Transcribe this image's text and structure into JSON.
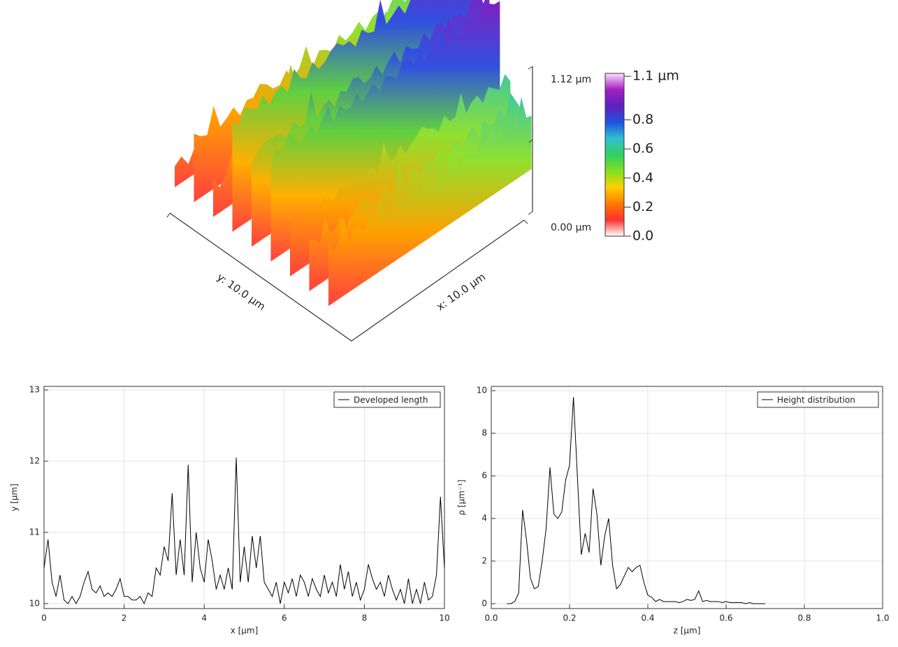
{
  "chart_data": [
    {
      "type": "surface3d",
      "xlabel": "x: 10.0 µm",
      "ylabel": "y: 10.0 µm",
      "z_axis_labels": [
        "1.12 µm",
        "0.00 µm"
      ],
      "clim": [
        0,
        1.12
      ],
      "colormap": [
        "#ffffff",
        "#ff3030",
        "#ff7a00",
        "#ffd000",
        "#80e020",
        "#30d060",
        "#30c0d0",
        "#2050e0",
        "#6020c0",
        "#a020c0",
        "#ffe0ff"
      ],
      "cticks": [
        {
          "value": 0,
          "label": "0.0"
        },
        0.2,
        0.4,
        0.6,
        0.8,
        {
          "value": 1.1,
          "label": "1.1 µm"
        }
      ]
    },
    {
      "type": "line",
      "xlabel": "x [µm]",
      "ylabel": "y [µm]",
      "xlim": [
        0,
        10
      ],
      "ylim": [
        9.93,
        13.05
      ],
      "xticks": [
        0,
        2,
        4,
        6,
        8,
        10
      ],
      "yticks": [
        10,
        11,
        12,
        13
      ],
      "grid": true,
      "legend": "top-right",
      "series": [
        {
          "name": "Developed length",
          "color": "#000000",
          "x": [
            0,
            0.1,
            0.2,
            0.3,
            0.4,
            0.5,
            0.6,
            0.7,
            0.8,
            0.9,
            1,
            1.1,
            1.2,
            1.3,
            1.4,
            1.5,
            1.6,
            1.7,
            1.8,
            1.9,
            2,
            2.1,
            2.2,
            2.3,
            2.4,
            2.5,
            2.6,
            2.7,
            2.8,
            2.9,
            3,
            3.1,
            3.2,
            3.3,
            3.4,
            3.5,
            3.6,
            3.7,
            3.8,
            3.9,
            4,
            4.1,
            4.2,
            4.3,
            4.4,
            4.5,
            4.6,
            4.7,
            4.8,
            4.9,
            5,
            5.1,
            5.2,
            5.3,
            5.4,
            5.5,
            5.6,
            5.7,
            5.8,
            5.9,
            6,
            6.1,
            6.2,
            6.3,
            6.4,
            6.5,
            6.6,
            6.7,
            6.8,
            6.9,
            7,
            7.1,
            7.2,
            7.3,
            7.4,
            7.5,
            7.6,
            7.7,
            7.8,
            7.9,
            8,
            8.1,
            8.2,
            8.3,
            8.4,
            8.5,
            8.6,
            8.7,
            8.8,
            8.9,
            9,
            9.1,
            9.2,
            9.3,
            9.4,
            9.5,
            9.6,
            9.7,
            9.8,
            9.9,
            10
          ],
          "values": [
            10.5,
            10.9,
            10.3,
            10.1,
            10.4,
            10.05,
            10,
            10.1,
            10,
            10.1,
            10.3,
            10.45,
            10.2,
            10.15,
            10.25,
            10.1,
            10.15,
            10.1,
            10.2,
            10.35,
            10.1,
            10.1,
            10.05,
            10.05,
            10.1,
            10,
            10.15,
            10.1,
            10.5,
            10.4,
            10.8,
            10.6,
            11.55,
            10.4,
            10.9,
            10.4,
            11.95,
            10.3,
            11,
            10.5,
            10.3,
            10.9,
            10.6,
            10.2,
            10.4,
            10.2,
            10.5,
            10.2,
            12.05,
            10.3,
            10.8,
            10.3,
            10.95,
            10.5,
            10.95,
            10.3,
            10.2,
            10.1,
            10.3,
            10,
            10.3,
            10.15,
            10.35,
            10.1,
            10.4,
            10.3,
            10.1,
            10.35,
            10.2,
            10.1,
            10.4,
            10.15,
            10.3,
            10.1,
            10.55,
            10.2,
            10.45,
            10.1,
            10.3,
            10.05,
            10.2,
            10.55,
            10.35,
            10.2,
            10.3,
            10.1,
            10.4,
            10.2,
            10.05,
            10.2,
            10,
            10.35,
            10,
            10.2,
            10,
            10.3,
            10.05,
            10.1,
            10.4,
            11.5,
            10.5
          ]
        }
      ]
    },
    {
      "type": "line",
      "xlabel": "z [µm]",
      "ylabel": "ρ [µm⁻¹]",
      "xlim": [
        0,
        1
      ],
      "ylim": [
        -0.23,
        10.2
      ],
      "xticks": [
        {
          "value": 0,
          "label": "0.0"
        },
        0.2,
        0.4,
        0.6,
        0.8,
        {
          "value": 1,
          "label": "1.0"
        }
      ],
      "yticks": [
        0,
        2,
        4,
        6,
        8,
        10
      ],
      "grid": true,
      "legend": "top-right",
      "series": [
        {
          "name": "Height distribution",
          "color": "#000000",
          "x": [
            0.04,
            0.05,
            0.06,
            0.07,
            0.08,
            0.09,
            0.1,
            0.11,
            0.12,
            0.13,
            0.14,
            0.15,
            0.16,
            0.17,
            0.18,
            0.19,
            0.2,
            0.21,
            0.22,
            0.23,
            0.24,
            0.25,
            0.26,
            0.27,
            0.28,
            0.29,
            0.3,
            0.31,
            0.32,
            0.33,
            0.34,
            0.35,
            0.36,
            0.37,
            0.38,
            0.39,
            0.4,
            0.41,
            0.42,
            0.43,
            0.44,
            0.45,
            0.46,
            0.47,
            0.48,
            0.49,
            0.5,
            0.51,
            0.52,
            0.53,
            0.54,
            0.55,
            0.56,
            0.57,
            0.58,
            0.59,
            0.6,
            0.61,
            0.62,
            0.63,
            0.64,
            0.65,
            0.66,
            0.67,
            0.68,
            0.69,
            0.7
          ],
          "values": [
            0,
            0,
            0.1,
            0.5,
            4.4,
            3,
            1.2,
            0.7,
            0.8,
            2,
            3.5,
            6.4,
            4.2,
            4,
            4.3,
            5.8,
            6.5,
            9.7,
            6,
            2.3,
            3.3,
            2.4,
            5.4,
            4.2,
            1.8,
            3.2,
            4,
            1.8,
            0.7,
            0.9,
            1.3,
            1.7,
            1.5,
            1.7,
            1.8,
            1,
            0.4,
            0.3,
            0.1,
            0.2,
            0.1,
            0.1,
            0.1,
            0.1,
            0.05,
            0.1,
            0.2,
            0.15,
            0.2,
            0.6,
            0.1,
            0.15,
            0.1,
            0.1,
            0.1,
            0.05,
            0.1,
            0.05,
            0.05,
            0.05,
            0.05,
            0,
            0.05,
            0,
            0,
            0,
            0
          ]
        }
      ]
    }
  ]
}
